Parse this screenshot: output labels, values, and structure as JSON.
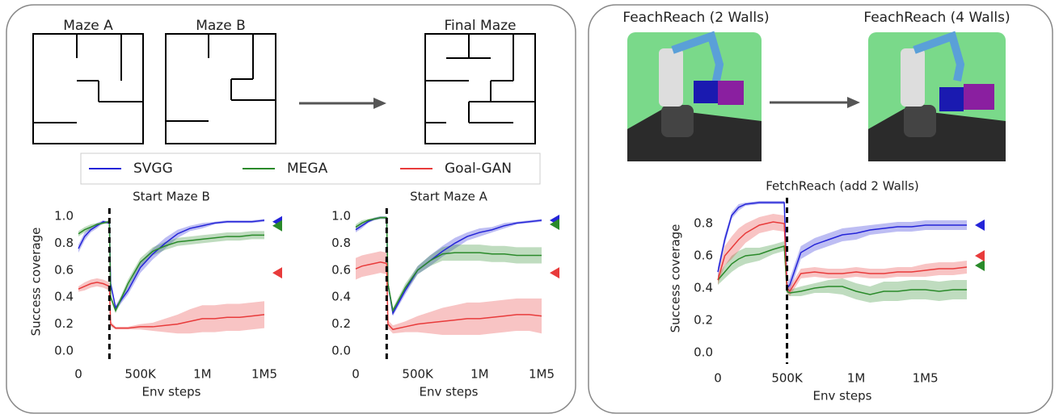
{
  "maze_labels": [
    "Maze A",
    "Maze B",
    "Final Maze"
  ],
  "robot_labels": [
    "FeachReach (2 Walls)",
    "FeachReach (4 Walls)"
  ],
  "chart_data": [
    {
      "type": "line",
      "title": "Start Maze B",
      "xlabel": "Env steps",
      "ylabel": "Success coverage",
      "switch_x": 250000,
      "xlim": [
        0,
        1500000
      ],
      "ylim": [
        -0.03,
        1.06
      ],
      "xticks": [
        0,
        {
          "value": 500000,
          "label": "500K"
        },
        {
          "value": 1000000,
          "label": "1M"
        },
        {
          "value": 1500000,
          "label": "1M5"
        }
      ],
      "yticks": [
        {
          "value": 0,
          "label": "0.0"
        },
        0.2,
        0.4,
        0.6,
        0.8,
        {
          "value": 1,
          "label": "1.0"
        }
      ],
      "x": [
        0,
        50000,
        100000,
        150000,
        200000,
        250000,
        260000,
        300000,
        400000,
        500000,
        600000,
        700000,
        800000,
        900000,
        1000000,
        1100000,
        1200000,
        1300000,
        1400000,
        1500000
      ],
      "series": [
        {
          "name": "SVGG",
          "color": "#2424d8",
          "marker": 0.96,
          "values": [
            0.76,
            0.85,
            0.9,
            0.93,
            0.96,
            0.95,
            0.5,
            0.32,
            0.45,
            0.62,
            0.72,
            0.8,
            0.87,
            0.91,
            0.93,
            0.95,
            0.96,
            0.96,
            0.96,
            0.97
          ],
          "error": [
            0.03,
            0.03,
            0.02,
            0.02,
            0.01,
            0.01,
            0.02,
            0.02,
            0.03,
            0.04,
            0.04,
            0.04,
            0.03,
            0.02,
            0.02,
            0.01,
            0.01,
            0.01,
            0.01,
            0.01
          ]
        },
        {
          "name": "MEGA",
          "color": "#2a8a2a",
          "marker": 0.93,
          "values": [
            0.87,
            0.9,
            0.92,
            0.94,
            0.95,
            0.96,
            0.4,
            0.3,
            0.5,
            0.66,
            0.74,
            0.78,
            0.81,
            0.82,
            0.83,
            0.84,
            0.85,
            0.85,
            0.86,
            0.86
          ],
          "error": [
            0.02,
            0.02,
            0.02,
            0.01,
            0.01,
            0.01,
            0.02,
            0.02,
            0.03,
            0.03,
            0.03,
            0.03,
            0.03,
            0.03,
            0.03,
            0.03,
            0.03,
            0.03,
            0.03,
            0.03
          ]
        },
        {
          "name": "Goal-GAN",
          "color": "#e83b3b",
          "marker": 0.58,
          "values": [
            0.46,
            0.48,
            0.5,
            0.51,
            0.5,
            0.48,
            0.2,
            0.17,
            0.17,
            0.18,
            0.18,
            0.19,
            0.2,
            0.22,
            0.24,
            0.24,
            0.25,
            0.25,
            0.26,
            0.27
          ],
          "error": [
            0.02,
            0.03,
            0.03,
            0.03,
            0.03,
            0.03,
            0.02,
            0.01,
            0.01,
            0.02,
            0.03,
            0.05,
            0.07,
            0.09,
            0.1,
            0.1,
            0.1,
            0.1,
            0.1,
            0.1
          ]
        }
      ]
    },
    {
      "type": "line",
      "title": "Start Maze A",
      "xlabel": "Env steps",
      "switch_x": 250000,
      "xlim": [
        0,
        1500000
      ],
      "ylim": [
        -0.03,
        1.06
      ],
      "xticks": [
        0,
        {
          "value": 500000,
          "label": "500K"
        },
        {
          "value": 1000000,
          "label": "1M"
        },
        {
          "value": 1500000,
          "label": "1M5"
        }
      ],
      "yticks": [
        {
          "value": 0,
          "label": "0.0"
        },
        0.2,
        0.4,
        0.6,
        0.8,
        {
          "value": 1,
          "label": "1.0"
        }
      ],
      "x": [
        0,
        50000,
        100000,
        150000,
        200000,
        250000,
        260000,
        300000,
        400000,
        500000,
        600000,
        700000,
        800000,
        900000,
        1000000,
        1100000,
        1200000,
        1300000,
        1400000,
        1500000
      ],
      "series": [
        {
          "name": "SVGG",
          "color": "#2424d8",
          "marker": 0.97,
          "values": [
            0.9,
            0.93,
            0.96,
            0.98,
            0.99,
            0.99,
            0.5,
            0.28,
            0.45,
            0.6,
            0.67,
            0.74,
            0.8,
            0.85,
            0.88,
            0.9,
            0.93,
            0.95,
            0.96,
            0.97
          ],
          "error": [
            0.02,
            0.02,
            0.01,
            0.01,
            0.01,
            0.01,
            0.02,
            0.02,
            0.03,
            0.03,
            0.04,
            0.04,
            0.04,
            0.03,
            0.03,
            0.02,
            0.02,
            0.01,
            0.01,
            0.01
          ]
        },
        {
          "name": "MEGA",
          "color": "#2a8a2a",
          "marker": 0.94,
          "values": [
            0.92,
            0.95,
            0.97,
            0.98,
            0.99,
            0.99,
            0.5,
            0.3,
            0.47,
            0.6,
            0.67,
            0.72,
            0.73,
            0.73,
            0.73,
            0.72,
            0.72,
            0.71,
            0.71,
            0.71
          ],
          "error": [
            0.02,
            0.02,
            0.01,
            0.01,
            0.01,
            0.01,
            0.02,
            0.02,
            0.03,
            0.03,
            0.04,
            0.05,
            0.06,
            0.06,
            0.06,
            0.06,
            0.06,
            0.06,
            0.06,
            0.06
          ]
        },
        {
          "name": "Goal-GAN",
          "color": "#e83b3b",
          "marker": 0.58,
          "values": [
            0.61,
            0.63,
            0.64,
            0.65,
            0.66,
            0.65,
            0.2,
            0.16,
            0.18,
            0.2,
            0.21,
            0.22,
            0.23,
            0.24,
            0.24,
            0.25,
            0.26,
            0.27,
            0.27,
            0.26
          ],
          "error": [
            0.08,
            0.08,
            0.08,
            0.08,
            0.08,
            0.08,
            0.03,
            0.03,
            0.04,
            0.06,
            0.08,
            0.1,
            0.11,
            0.12,
            0.12,
            0.12,
            0.12,
            0.12,
            0.12,
            0.13
          ]
        }
      ]
    },
    {
      "type": "line",
      "title": "FetchReach (add 2 Walls)",
      "xlabel": "Env steps",
      "ylabel": "Success coverage",
      "switch_x": 500000,
      "xlim": [
        0,
        1800000
      ],
      "ylim": [
        -0.04,
        0.96
      ],
      "xticks": [
        0,
        {
          "value": 500000,
          "label": "500K"
        },
        {
          "value": 1000000,
          "label": "1M"
        },
        {
          "value": 1500000,
          "label": "1M5"
        }
      ],
      "yticks": [
        {
          "value": 0,
          "label": "0.0"
        },
        0.2,
        0.4,
        0.6,
        0.8
      ],
      "x": [
        0,
        50000,
        100000,
        150000,
        200000,
        300000,
        400000,
        480000,
        500000,
        520000,
        600000,
        700000,
        800000,
        900000,
        1000000,
        1100000,
        1200000,
        1300000,
        1400000,
        1500000,
        1600000,
        1700000,
        1800000
      ],
      "series": [
        {
          "name": "SVGG",
          "color": "#2424d8",
          "marker": 0.79,
          "values": [
            0.5,
            0.7,
            0.85,
            0.9,
            0.92,
            0.93,
            0.93,
            0.93,
            0.4,
            0.42,
            0.62,
            0.67,
            0.7,
            0.73,
            0.74,
            0.76,
            0.77,
            0.78,
            0.78,
            0.79,
            0.79,
            0.79,
            0.79
          ],
          "error": [
            0.03,
            0.03,
            0.02,
            0.02,
            0.01,
            0.01,
            0.01,
            0.01,
            0.03,
            0.04,
            0.04,
            0.04,
            0.04,
            0.04,
            0.04,
            0.03,
            0.03,
            0.03,
            0.03,
            0.03,
            0.03,
            0.03,
            0.03
          ]
        },
        {
          "name": "MEGA",
          "color": "#2a8a2a",
          "marker": 0.54,
          "values": [
            0.45,
            0.5,
            0.55,
            0.58,
            0.6,
            0.61,
            0.64,
            0.66,
            0.38,
            0.37,
            0.38,
            0.4,
            0.41,
            0.41,
            0.38,
            0.36,
            0.38,
            0.38,
            0.39,
            0.39,
            0.38,
            0.39,
            0.39
          ],
          "error": [
            0.03,
            0.04,
            0.05,
            0.05,
            0.05,
            0.04,
            0.03,
            0.03,
            0.02,
            0.02,
            0.03,
            0.03,
            0.04,
            0.05,
            0.05,
            0.05,
            0.06,
            0.06,
            0.06,
            0.06,
            0.06,
            0.06,
            0.06
          ]
        },
        {
          "name": "Goal-GAN",
          "color": "#e83b3b",
          "marker": 0.6,
          "values": [
            0.45,
            0.6,
            0.65,
            0.7,
            0.74,
            0.79,
            0.81,
            0.8,
            0.4,
            0.38,
            0.49,
            0.5,
            0.49,
            0.49,
            0.5,
            0.49,
            0.49,
            0.5,
            0.5,
            0.51,
            0.52,
            0.52,
            0.53
          ],
          "error": [
            0.03,
            0.06,
            0.07,
            0.07,
            0.06,
            0.05,
            0.05,
            0.05,
            0.03,
            0.03,
            0.03,
            0.03,
            0.03,
            0.03,
            0.03,
            0.03,
            0.03,
            0.03,
            0.03,
            0.04,
            0.04,
            0.04,
            0.04
          ]
        }
      ]
    }
  ]
}
